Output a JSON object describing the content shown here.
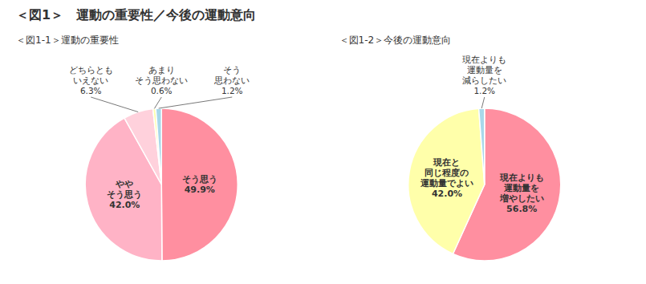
{
  "title": "＜図1＞　運動の重要性／今後の運動意向",
  "chart_data": [
    {
      "type": "pie",
      "title": "＜図1-1＞運動の重要性",
      "categories": [
        "そう思う",
        "やや\nそう思う",
        "どちらとも\nいえない",
        "あまり\nそう思わない",
        "そう\n思わない"
      ],
      "values": [
        49.9,
        42.0,
        6.3,
        0.6,
        1.2
      ],
      "value_labels": [
        "49.9%",
        "42.0%",
        "6.3%",
        "0.6%",
        "1.2%"
      ],
      "colors": [
        "#FF8FA0",
        "#FFB3C6",
        "#FFD1DC",
        "#FFFFAA",
        "#A8D8EA"
      ],
      "data_labels": true
    },
    {
      "type": "pie",
      "title": "＜図1-2＞今後の運動意向",
      "categories": [
        "現在よりも\n運動量を\n増やしたい",
        "現在と\n同じ程度の\n運動量でよい",
        "現在よりも\n運動量を\n減らしたい"
      ],
      "values": [
        56.8,
        42.0,
        1.2
      ],
      "value_labels": [
        "56.8%",
        "42.0%",
        "1.2%"
      ],
      "colors": [
        "#FF8FA0",
        "#FFFFAA",
        "#A8D8EA"
      ],
      "data_labels": true
    }
  ]
}
